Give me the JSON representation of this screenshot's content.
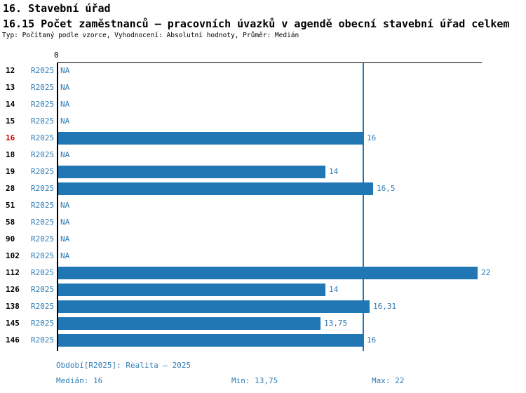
{
  "header": {
    "title": "16. Stavební úřad",
    "subtitle": "16.15 Počet zaměstnanců – pracovních úvazků v agendě obecní stavební úřad celkem",
    "meta": "Typ: Počítaný podle vzorce, Vyhodnocení: Absolutní hodnoty, Průměr: Medián"
  },
  "chart_data": {
    "type": "bar",
    "orientation": "horizontal",
    "title": "16.15 Počet zaměstnanců – pracovních úvazků v agendě obecní stavební úřad celkem",
    "categories": [
      "12",
      "13",
      "14",
      "15",
      "16",
      "18",
      "19",
      "28",
      "51",
      "58",
      "90",
      "102",
      "112",
      "126",
      "138",
      "145",
      "146"
    ],
    "period_label": "R2025",
    "values": [
      null,
      null,
      null,
      null,
      16,
      null,
      14,
      16.5,
      null,
      null,
      null,
      null,
      22,
      14,
      16.31,
      13.75,
      16
    ],
    "value_labels": [
      "NA",
      "NA",
      "NA",
      "NA",
      "16",
      "NA",
      "14",
      "16,5",
      "NA",
      "NA",
      "NA",
      "NA",
      "22",
      "14",
      "16,31",
      "13,75",
      "16"
    ],
    "highlighted_index": 4,
    "highlighted_category": "16",
    "axis": {
      "zero_label": "0",
      "xlim": [
        0,
        22.2
      ]
    },
    "median_line_value": 16,
    "stats": {
      "median": 16,
      "min": 13.75,
      "max": 22
    },
    "colors": {
      "bar": "#2177b4",
      "median_line": "#2177b4",
      "text_blue": "#2e7bb4",
      "highlight": "#dd0000"
    }
  },
  "footer": {
    "period": "Období[R2025]: Realita – 2025",
    "median": "Medián: 16",
    "min": "Min: 13,75",
    "max": "Max: 22"
  }
}
